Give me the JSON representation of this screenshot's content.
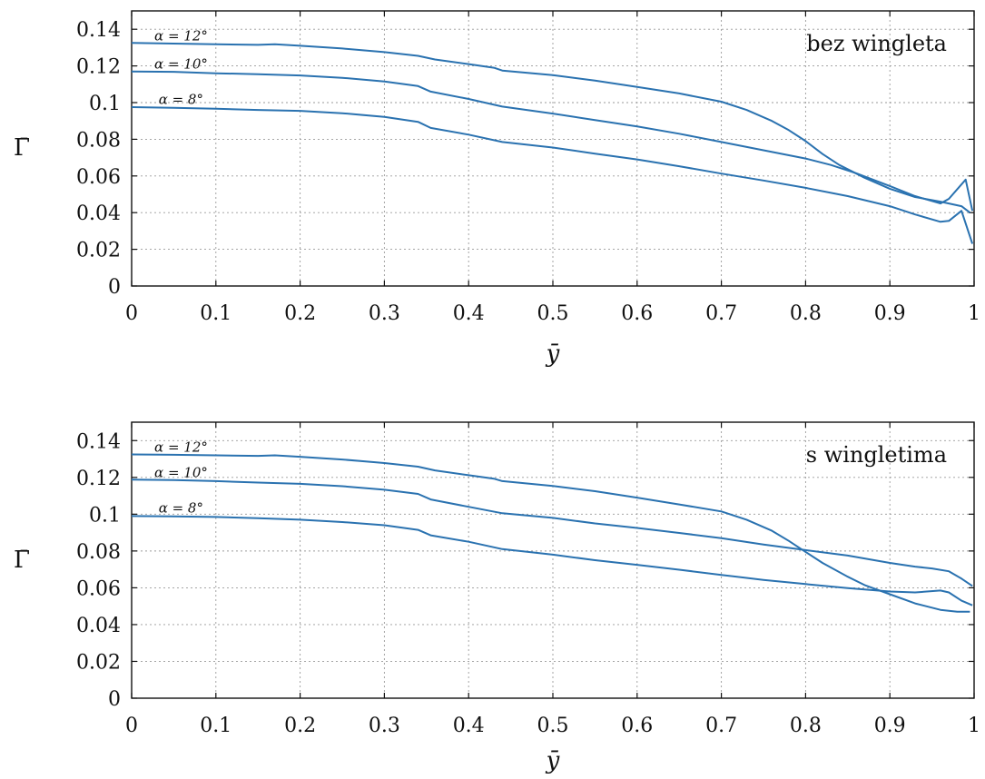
{
  "chart_data": [
    {
      "type": "line",
      "title": "bez wingleta",
      "xlabel": "ȳ",
      "ylabel": "Γ̄",
      "xlim": [
        0,
        1
      ],
      "ylim": [
        0,
        0.15
      ],
      "xticks": [
        0,
        0.1,
        0.2,
        0.3,
        0.4,
        0.5,
        0.6,
        0.7,
        0.8,
        0.9,
        1
      ],
      "xtick_labels": [
        "0",
        "0.1",
        "0.2",
        "0.3",
        "0.4",
        "0.5",
        "0.6",
        "0.7",
        "0.8",
        "0.9",
        "1"
      ],
      "yticks": [
        0,
        0.02,
        0.04,
        0.06,
        0.08,
        0.1,
        0.12,
        0.14
      ],
      "ytick_labels": [
        "0",
        "0.02",
        "0.04",
        "0.06",
        "0.08",
        "0.1",
        "0.12",
        "0.14"
      ],
      "grid": true,
      "color": "#2a72b0",
      "series": [
        {
          "label": "α = 12°",
          "label_pos": [
            0.027,
            0.1365
          ],
          "points": [
            [
              0,
              0.1325
            ],
            [
              0.05,
              0.1322
            ],
            [
              0.1,
              0.1318
            ],
            [
              0.15,
              0.1315
            ],
            [
              0.17,
              0.1318
            ],
            [
              0.2,
              0.131
            ],
            [
              0.25,
              0.1295
            ],
            [
              0.3,
              0.1275
            ],
            [
              0.34,
              0.1255
            ],
            [
              0.36,
              0.1235
            ],
            [
              0.4,
              0.121
            ],
            [
              0.43,
              0.119
            ],
            [
              0.44,
              0.1175
            ],
            [
              0.5,
              0.115
            ],
            [
              0.55,
              0.112
            ],
            [
              0.6,
              0.1085
            ],
            [
              0.65,
              0.105
            ],
            [
              0.7,
              0.1005
            ],
            [
              0.73,
              0.096
            ],
            [
              0.76,
              0.09
            ],
            [
              0.78,
              0.085
            ],
            [
              0.8,
              0.079
            ],
            [
              0.82,
              0.072
            ],
            [
              0.84,
              0.066
            ],
            [
              0.87,
              0.059
            ],
            [
              0.9,
              0.053
            ],
            [
              0.93,
              0.0485
            ],
            [
              0.96,
              0.046
            ],
            [
              0.985,
              0.0435
            ],
            [
              0.995,
              0.04
            ]
          ]
        },
        {
          "label": "α = 10°",
          "label_pos": [
            0.027,
            0.121
          ],
          "points": [
            [
              0,
              0.117
            ],
            [
              0.05,
              0.1168
            ],
            [
              0.1,
              0.116
            ],
            [
              0.15,
              0.1155
            ],
            [
              0.2,
              0.1148
            ],
            [
              0.25,
              0.1135
            ],
            [
              0.3,
              0.1115
            ],
            [
              0.34,
              0.109
            ],
            [
              0.355,
              0.106
            ],
            [
              0.4,
              0.102
            ],
            [
              0.44,
              0.0978
            ],
            [
              0.5,
              0.094
            ],
            [
              0.55,
              0.0905
            ],
            [
              0.6,
              0.087
            ],
            [
              0.65,
              0.083
            ],
            [
              0.7,
              0.0785
            ],
            [
              0.75,
              0.074
            ],
            [
              0.8,
              0.0695
            ],
            [
              0.83,
              0.066
            ],
            [
              0.86,
              0.0615
            ],
            [
              0.9,
              0.0545
            ],
            [
              0.93,
              0.049
            ],
            [
              0.96,
              0.045
            ],
            [
              0.97,
              0.0475
            ],
            [
              0.99,
              0.058
            ],
            [
              0.998,
              0.041
            ]
          ]
        },
        {
          "label": "α = 8°",
          "label_pos": [
            0.032,
            0.1017
          ],
          "points": [
            [
              0,
              0.0975
            ],
            [
              0.05,
              0.0972
            ],
            [
              0.1,
              0.0967
            ],
            [
              0.15,
              0.096
            ],
            [
              0.2,
              0.0955
            ],
            [
              0.25,
              0.0942
            ],
            [
              0.3,
              0.0922
            ],
            [
              0.34,
              0.0895
            ],
            [
              0.355,
              0.0862
            ],
            [
              0.4,
              0.0825
            ],
            [
              0.44,
              0.0785
            ],
            [
              0.5,
              0.0755
            ],
            [
              0.55,
              0.0722
            ],
            [
              0.6,
              0.069
            ],
            [
              0.65,
              0.0653
            ],
            [
              0.7,
              0.0613
            ],
            [
              0.75,
              0.0575
            ],
            [
              0.8,
              0.0535
            ],
            [
              0.85,
              0.049
            ],
            [
              0.9,
              0.0435
            ],
            [
              0.93,
              0.039
            ],
            [
              0.96,
              0.035
            ],
            [
              0.97,
              0.0355
            ],
            [
              0.985,
              0.041
            ],
            [
              0.998,
              0.023
            ]
          ]
        }
      ]
    },
    {
      "type": "line",
      "title": "s wingletima",
      "xlabel": "ȳ",
      "ylabel": "Γ̄",
      "xlim": [
        0,
        1
      ],
      "ylim": [
        0,
        0.15
      ],
      "xticks": [
        0,
        0.1,
        0.2,
        0.3,
        0.4,
        0.5,
        0.6,
        0.7,
        0.8,
        0.9,
        1
      ],
      "xtick_labels": [
        "0",
        "0.1",
        "0.2",
        "0.3",
        "0.4",
        "0.5",
        "0.6",
        "0.7",
        "0.8",
        "0.9",
        "1"
      ],
      "yticks": [
        0,
        0.02,
        0.04,
        0.06,
        0.08,
        0.1,
        0.12,
        0.14
      ],
      "ytick_labels": [
        "0",
        "0.02",
        "0.04",
        "0.06",
        "0.08",
        "0.1",
        "0.12",
        "0.14"
      ],
      "grid": true,
      "color": "#2a72b0",
      "series": [
        {
          "label": "α = 12°",
          "label_pos": [
            0.027,
            0.1365
          ],
          "points": [
            [
              0,
              0.1325
            ],
            [
              0.05,
              0.1323
            ],
            [
              0.1,
              0.132
            ],
            [
              0.15,
              0.1317
            ],
            [
              0.17,
              0.132
            ],
            [
              0.2,
              0.1312
            ],
            [
              0.25,
              0.1297
            ],
            [
              0.3,
              0.1278
            ],
            [
              0.34,
              0.1258
            ],
            [
              0.36,
              0.1238
            ],
            [
              0.4,
              0.1212
            ],
            [
              0.43,
              0.1193
            ],
            [
              0.44,
              0.118
            ],
            [
              0.5,
              0.1153
            ],
            [
              0.55,
              0.1125
            ],
            [
              0.6,
              0.109
            ],
            [
              0.65,
              0.1053
            ],
            [
              0.7,
              0.1015
            ],
            [
              0.73,
              0.097
            ],
            [
              0.76,
              0.091
            ],
            [
              0.78,
              0.0855
            ],
            [
              0.8,
              0.0795
            ],
            [
              0.82,
              0.0735
            ],
            [
              0.85,
              0.066
            ],
            [
              0.87,
              0.0615
            ],
            [
              0.9,
              0.0565
            ],
            [
              0.93,
              0.0515
            ],
            [
              0.96,
              0.048
            ],
            [
              0.98,
              0.047
            ],
            [
              0.995,
              0.047
            ]
          ]
        },
        {
          "label": "α = 10°",
          "label_pos": [
            0.027,
            0.1225
          ],
          "points": [
            [
              0,
              0.1188
            ],
            [
              0.05,
              0.1185
            ],
            [
              0.1,
              0.118
            ],
            [
              0.15,
              0.1172
            ],
            [
              0.2,
              0.1165
            ],
            [
              0.25,
              0.1152
            ],
            [
              0.3,
              0.1133
            ],
            [
              0.34,
              0.111
            ],
            [
              0.355,
              0.108
            ],
            [
              0.4,
              0.104
            ],
            [
              0.44,
              0.1005
            ],
            [
              0.5,
              0.098
            ],
            [
              0.55,
              0.095
            ],
            [
              0.6,
              0.0925
            ],
            [
              0.65,
              0.0898
            ],
            [
              0.7,
              0.087
            ],
            [
              0.75,
              0.0835
            ],
            [
              0.8,
              0.0805
            ],
            [
              0.85,
              0.0775
            ],
            [
              0.9,
              0.0735
            ],
            [
              0.93,
              0.0715
            ],
            [
              0.95,
              0.0705
            ],
            [
              0.97,
              0.069
            ],
            [
              0.985,
              0.065
            ],
            [
              0.998,
              0.061
            ]
          ]
        },
        {
          "label": "α = 8°",
          "label_pos": [
            0.032,
            0.1033
          ],
          "points": [
            [
              0,
              0.099
            ],
            [
              0.05,
              0.0988
            ],
            [
              0.1,
              0.0985
            ],
            [
              0.15,
              0.0978
            ],
            [
              0.2,
              0.097
            ],
            [
              0.25,
              0.0957
            ],
            [
              0.3,
              0.094
            ],
            [
              0.34,
              0.0915
            ],
            [
              0.355,
              0.0885
            ],
            [
              0.4,
              0.085
            ],
            [
              0.44,
              0.081
            ],
            [
              0.5,
              0.078
            ],
            [
              0.55,
              0.075
            ],
            [
              0.6,
              0.0725
            ],
            [
              0.65,
              0.0698
            ],
            [
              0.7,
              0.067
            ],
            [
              0.75,
              0.0643
            ],
            [
              0.8,
              0.062
            ],
            [
              0.85,
              0.0598
            ],
            [
              0.9,
              0.058
            ],
            [
              0.93,
              0.0575
            ],
            [
              0.96,
              0.0585
            ],
            [
              0.97,
              0.0575
            ],
            [
              0.985,
              0.053
            ],
            [
              0.998,
              0.0505
            ]
          ]
        }
      ]
    }
  ]
}
